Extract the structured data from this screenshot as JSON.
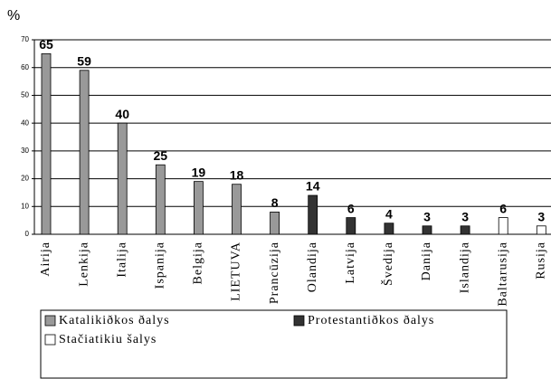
{
  "chart_data": {
    "type": "bar",
    "y_axis_label": "%",
    "categories": [
      "Airija",
      "Lenkija",
      "Italija",
      "Ispanija",
      "Belgija",
      "LIETUVA",
      "Prancūzija",
      "Olandija",
      "Latvija",
      "Švedija",
      "Danija",
      "Islandija",
      "Baltarusija",
      "Rusija"
    ],
    "series": [
      {
        "name": "Katalikiðkos ðalys",
        "color": "#999999",
        "values": [
          65,
          59,
          40,
          25,
          19,
          18,
          8,
          null,
          null,
          null,
          null,
          null,
          null,
          null
        ]
      },
      {
        "name": "Protestantiðkos ðalys",
        "color": "#333333",
        "values": [
          null,
          null,
          null,
          null,
          null,
          null,
          null,
          14,
          6,
          4,
          3,
          3,
          null,
          null
        ]
      },
      {
        "name": "Stačiatikiu šalys",
        "color": "#ffffff",
        "values": [
          null,
          null,
          null,
          null,
          null,
          null,
          null,
          null,
          null,
          null,
          null,
          null,
          6,
          3
        ]
      }
    ],
    "ylim": [
      0,
      70
    ],
    "yticks": [
      0,
      10,
      20,
      30,
      40,
      50,
      60,
      70
    ],
    "grid": true,
    "legend": "bottom"
  }
}
